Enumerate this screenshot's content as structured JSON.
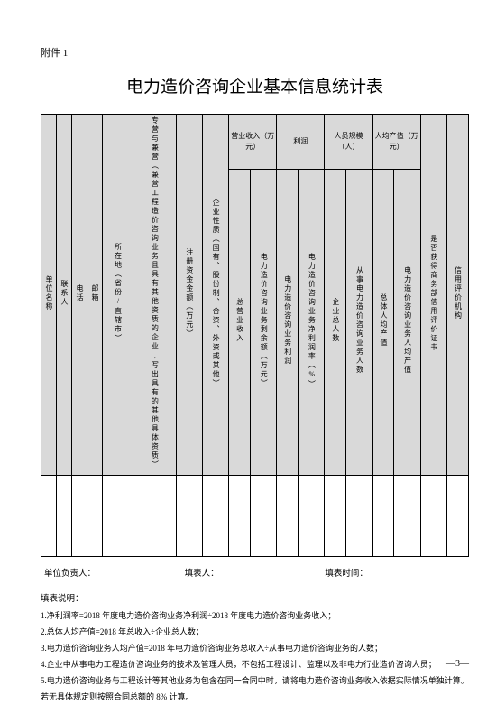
{
  "attachment": "附件 1",
  "title": "电力造价咨询企业基本信息统计表",
  "colors": {
    "headerBg": "#d9d9d9",
    "border": "#000000",
    "bg": "#ffffff"
  },
  "headers": {
    "unitName": "单位名称",
    "contact": "联系人",
    "phone": "电话",
    "email": "邮箱",
    "location": "所在地（省份/直辖市）",
    "business": "专营与兼营（兼营工程造价咨询业务且具有其他资质的企业,写出具有的其他具体资质）",
    "regCapital": "注册资金金额（万元）",
    "orgType": "企业性质（国有、股份制、合资、外资或其他）",
    "revenue": "营业收入（万元）",
    "totalRevenue": "总营业收入",
    "consultRevenue": "电力造价咨询业务剩余额（万元）",
    "profit": "利润",
    "consultProfit": "电力造价咨询业务利润",
    "profitRate": "电力造价咨询业务净利润率（%）",
    "staffScale": "人员规模（人）",
    "totalStaff": "企业总人数",
    "consultStaff": "从事电力造价咨询业务人数",
    "perCapitaOutput": "人均产值（万元）",
    "totalPerCapita": "总体人均产值",
    "consultPerCapita": "电力造价咨询业务人均产值",
    "hasCert": "是否获得商务部信用评价证书",
    "evalOrg": "信用评价机构"
  },
  "sign": {
    "responsible": "单位负责人：",
    "filler": "填表人：",
    "time": "填表时间："
  },
  "notesTitle": "填表说明：",
  "notes": [
    "1.净利润率=2018 年度电力造价咨询业务净利润÷2018 年度电力造价咨询业务收入；",
    "2.总体人均产值=2018 年总收入÷企业总人数；",
    "3.电力造价咨询业务人均产值=2018 年电力造价咨询业务总收入÷从事电力造价咨询业务的人数；",
    "4.企业中从事电力工程造价咨询业务的技术及管理人员，不包括工程设计、监理以及非电力行业造价咨询人员；",
    "5.电力造价咨询业务与工程设计等其他业务为包含在同一合同中时，请将电力造价咨询业务收入依据实际情况单独计算。若无具体规定则按照合同总额的 8% 计算。"
  ],
  "pageNum": "—3—"
}
